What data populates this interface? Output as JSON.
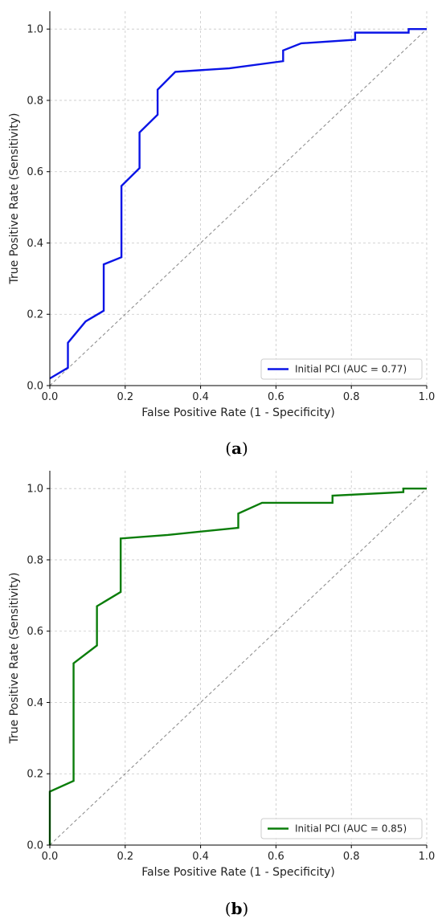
{
  "chart_data": [
    {
      "type": "line",
      "caption": "(a)",
      "caption_letter": "a",
      "xlabel": "False Positive Rate (1 - Specificity)",
      "ylabel": "True Positive Rate (Sensitivity)",
      "xlim": [
        0,
        1
      ],
      "ylim": [
        0,
        1.05
      ],
      "xticks": [
        0.0,
        0.2,
        0.4,
        0.6,
        0.8,
        1.0
      ],
      "yticks": [
        0.0,
        0.2,
        0.4,
        0.6,
        0.8,
        1.0
      ],
      "xtick_labels": [
        "0.0",
        "0.2",
        "0.4",
        "0.6",
        "0.8",
        "1.0"
      ],
      "ytick_labels": [
        "0.0",
        "0.2",
        "0.4",
        "0.6",
        "0.8",
        "1.0"
      ],
      "grid": true,
      "legend_position": "bottom-right",
      "series": [
        {
          "name": "Initial PCI (AUC = 0.77)",
          "color": "#0a14e6",
          "x": [
            0.0,
            0.048,
            0.048,
            0.095,
            0.143,
            0.143,
            0.19,
            0.19,
            0.238,
            0.238,
            0.286,
            0.286,
            0.333,
            0.476,
            0.619,
            0.619,
            0.667,
            0.81,
            0.81,
            0.952,
            0.952,
            1.0
          ],
          "y": [
            0.02,
            0.05,
            0.12,
            0.18,
            0.21,
            0.34,
            0.36,
            0.56,
            0.61,
            0.71,
            0.76,
            0.83,
            0.88,
            0.89,
            0.91,
            0.94,
            0.96,
            0.97,
            0.99,
            0.99,
            1.0,
            1.0
          ]
        }
      ],
      "reference_line": {
        "x": [
          0,
          1
        ],
        "y": [
          0,
          1
        ],
        "color": "#888888"
      }
    },
    {
      "type": "line",
      "caption": "(b)",
      "caption_letter": "b",
      "xlabel": "False Positive Rate (1 - Specificity)",
      "ylabel": "True Positive Rate (Sensitivity)",
      "xlim": [
        0,
        1
      ],
      "ylim": [
        0,
        1.05
      ],
      "xticks": [
        0.0,
        0.2,
        0.4,
        0.6,
        0.8,
        1.0
      ],
      "yticks": [
        0.0,
        0.2,
        0.4,
        0.6,
        0.8,
        1.0
      ],
      "xtick_labels": [
        "0.0",
        "0.2",
        "0.4",
        "0.6",
        "0.8",
        "1.0"
      ],
      "ytick_labels": [
        "0.0",
        "0.2",
        "0.4",
        "0.6",
        "0.8",
        "1.0"
      ],
      "grid": true,
      "legend_position": "bottom-right",
      "series": [
        {
          "name": "Initial PCI (AUC = 0.85)",
          "color": "#0a7d0a",
          "x": [
            0.0,
            0.0,
            0.063,
            0.063,
            0.125,
            0.125,
            0.188,
            0.188,
            0.313,
            0.5,
            0.5,
            0.563,
            0.75,
            0.75,
            0.938,
            0.938,
            1.0
          ],
          "y": [
            0.0,
            0.15,
            0.18,
            0.51,
            0.56,
            0.67,
            0.71,
            0.86,
            0.87,
            0.89,
            0.93,
            0.96,
            0.96,
            0.98,
            0.99,
            1.0,
            1.0
          ]
        }
      ],
      "reference_line": {
        "x": [
          0,
          1
        ],
        "y": [
          0,
          1
        ],
        "color": "#888888"
      }
    }
  ]
}
